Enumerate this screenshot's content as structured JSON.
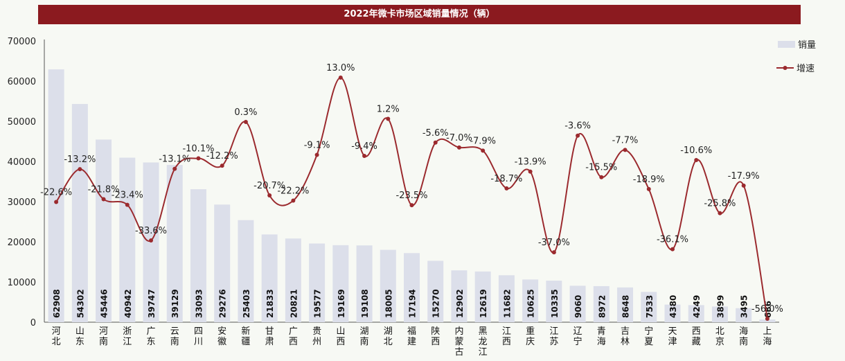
{
  "chart_data": {
    "type": "bar+line",
    "title": "2022年微卡市场区域销量情况（辆）",
    "categories": [
      "河北",
      "山东",
      "河南",
      "浙江",
      "广东",
      "云南",
      "四川",
      "安徽",
      "新疆",
      "甘肃",
      "广西",
      "贵州",
      "山西",
      "湖南",
      "湖北",
      "福建",
      "陕西",
      "内蒙古",
      "黑龙江",
      "江西",
      "重庆",
      "江苏",
      "辽宁",
      "青海",
      "吉林",
      "宁夏",
      "天津",
      "西藏",
      "北京",
      "海南",
      "上海"
    ],
    "series": [
      {
        "name": "销量",
        "type": "bar",
        "color": "#dcdfea",
        "values": [
          62908,
          54302,
          45446,
          40942,
          39747,
          39129,
          33093,
          29276,
          25403,
          21833,
          20821,
          19577,
          19169,
          19108,
          18005,
          17194,
          15270,
          12902,
          12619,
          11682,
          10625,
          10335,
          9060,
          8972,
          8648,
          7533,
          4380,
          4249,
          3899,
          3495,
          686
        ]
      },
      {
        "name": "增速",
        "type": "line",
        "color": "#9b2a2e",
        "labels": [
          "-22.6%",
          "-13.2%",
          "-21.8%",
          "-23.4%",
          "-33.6%",
          "-13.1%",
          "-10.1%",
          "-12.2%",
          "0.3%",
          "-20.7%",
          "-22.2%",
          "-9.1%",
          "13.0%",
          "-9.4%",
          "1.2%",
          "-23.5%",
          "-5.6%",
          "-7.0%",
          "-7.9%",
          "-18.7%",
          "-13.9%",
          "-37.0%",
          "-3.6%",
          "-15.5%",
          "-7.7%",
          "-18.9%",
          "-36.1%",
          "-10.6%",
          "-25.8%",
          "-17.9%",
          "-56.0%"
        ]
      }
    ],
    "y_axis": {
      "min": 0,
      "max": 70000,
      "ticks": [
        0,
        10000,
        20000,
        30000,
        40000,
        50000,
        60000,
        70000
      ]
    },
    "legend_position": "top-right"
  }
}
